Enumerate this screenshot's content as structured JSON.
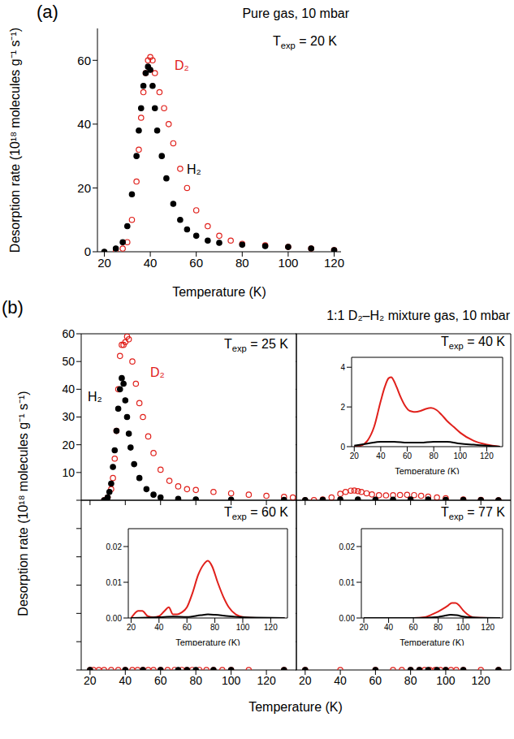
{
  "chart_data": [
    {
      "type": "scatter",
      "panel_label": "(a)",
      "title": "Pure gas, 10 mbar",
      "annotation": "Texp = 20 K",
      "xlabel": "Temperature (K)",
      "ylabel": "Desorption rate (10¹⁸ molecules g⁻¹ s⁻¹)",
      "xlim": [
        17,
        123
      ],
      "xticks": [
        20,
        40,
        60,
        80,
        100,
        120
      ],
      "ylim": [
        0,
        70
      ],
      "yticks": [
        0,
        20,
        40,
        60
      ],
      "grid": false,
      "series": [
        {
          "name": "D₂",
          "color": "#e0201b",
          "marker": "open circle",
          "x": [
            25,
            28,
            30,
            32,
            34,
            35,
            36,
            37,
            38,
            39,
            40,
            41,
            42,
            44,
            46,
            48,
            50,
            53,
            56,
            60,
            65,
            70,
            75,
            80,
            90,
            100,
            110,
            120
          ],
          "values": [
            0,
            1,
            3,
            10,
            22,
            32,
            42,
            50,
            56,
            60,
            61,
            60,
            56,
            50,
            45,
            40,
            34,
            26,
            20,
            13,
            8,
            5,
            3.5,
            2.5,
            2,
            1.5,
            1,
            0.5
          ]
        },
        {
          "name": "H₂",
          "color": "#000000",
          "marker": "circle",
          "x": [
            20,
            25,
            28,
            30,
            32,
            34,
            35,
            36,
            37,
            38,
            39,
            40,
            41,
            42,
            43,
            45,
            47,
            50,
            53,
            56,
            60,
            65,
            70,
            80,
            90,
            100,
            110,
            120
          ],
          "values": [
            0,
            1,
            3,
            8,
            18,
            30,
            38,
            45,
            52,
            56,
            58,
            57,
            52,
            45,
            38,
            30,
            23,
            15,
            10,
            7,
            5,
            3.5,
            2.8,
            2.2,
            1.8,
            1.5,
            1,
            0.5
          ]
        }
      ]
    },
    {
      "type": "scatter",
      "panel_label": "(b)",
      "title": "1:1 D₂–H₂ mixture gas, 10 mbar",
      "xlabel": "Temperature (K)",
      "ylabel": "Desorption rate (10¹⁸ molecules g⁻¹ s⁻¹)",
      "xlim": [
        15,
        137
      ],
      "xticks": [
        20,
        40,
        60,
        80,
        100,
        120
      ],
      "ylim": [
        0,
        60
      ],
      "yticks": [
        0,
        10,
        20,
        30,
        40,
        50,
        60
      ],
      "grid": false,
      "subplots": [
        {
          "annotation": "Texp = 25 K",
          "series": [
            {
              "name": "D₂",
              "color": "#e0201b",
              "marker": "open circle",
              "x": [
                28,
                30,
                32,
                33,
                34,
                35,
                36,
                37,
                38,
                39,
                40,
                41,
                42,
                44,
                46,
                48,
                50,
                53,
                56,
                60,
                65,
                70,
                75,
                80,
                90,
                100,
                110,
                120,
                130,
                135
              ],
              "values": [
                0,
                1,
                4,
                8,
                15,
                25,
                40,
                52,
                56,
                56,
                57,
                59,
                58,
                50,
                42,
                35,
                30,
                23,
                17,
                11,
                7,
                5,
                4,
                3.7,
                3,
                2.5,
                2,
                1.6,
                1.2,
                1
              ]
            },
            {
              "name": "H₂",
              "color": "#000000",
              "marker": "circle",
              "x": [
                28,
                30,
                31,
                32,
                33,
                34,
                35,
                36,
                37,
                38,
                39,
                40,
                41,
                42,
                43,
                45,
                48,
                52,
                56,
                60,
                70,
                80,
                100,
                130
              ],
              "values": [
                0,
                1,
                3,
                6,
                12,
                18,
                25,
                33,
                40,
                44,
                42,
                36,
                30,
                24,
                19,
                13,
                8,
                4,
                2,
                1,
                0.5,
                0.3,
                0.2,
                0.1
              ]
            }
          ]
        },
        {
          "annotation": "Texp = 40 K",
          "series": [
            {
              "name": "D₂",
              "color": "#e0201b",
              "marker": "open circle",
              "x": [
                20,
                25,
                30,
                35,
                40,
                43,
                46,
                48,
                50,
                52,
                55,
                58,
                62,
                66,
                70,
                74,
                78,
                82,
                86,
                90,
                95,
                100,
                110,
                120,
                130
              ],
              "values": [
                0,
                0.05,
                0.3,
                1,
                2.3,
                3,
                3.45,
                3.5,
                3.3,
                3,
                2.5,
                2.1,
                1.8,
                1.75,
                1.8,
                1.9,
                1.95,
                1.85,
                1.6,
                1.3,
                1,
                0.7,
                0.3,
                0.1,
                0
              ]
            },
            {
              "name": "H₂",
              "color": "#000000",
              "marker": "circle",
              "x": [
                20,
                30,
                40,
                50,
                60,
                70,
                80,
                90,
                100,
                110,
                120,
                130
              ],
              "values": [
                0.05,
                0.15,
                0.25,
                0.25,
                0.2,
                0.2,
                0.25,
                0.25,
                0.15,
                0.1,
                0.05,
                0
              ]
            }
          ],
          "inset": {
            "type": "line",
            "xlabel": "Temperature (K)",
            "xlim": [
              18,
              132
            ],
            "xticks": [
              20,
              40,
              60,
              80,
              100,
              120
            ],
            "ylim": [
              0,
              4.5
            ],
            "yticks": [
              0,
              2,
              4
            ]
          }
        },
        {
          "annotation": "Texp = 60 K",
          "series": [
            {
              "name": "D₂",
              "color": "#e0201b",
              "marker": "open circle",
              "x": [
                20,
                22,
                25,
                28,
                32,
                36,
                40,
                44,
                47,
                50,
                53,
                56,
                60,
                64,
                68,
                72,
                75,
                78,
                82,
                86,
                90,
                95,
                100,
                110,
                130
              ],
              "values": [
                0,
                0.001,
                0.002,
                0.002,
                0.0005,
                0.0002,
                0.0005,
                0.002,
                0.003,
                0.001,
                0.001,
                0.0015,
                0.003,
                0.007,
                0.012,
                0.015,
                0.016,
                0.0145,
                0.01,
                0.006,
                0.003,
                0.001,
                0.0003,
                0,
                0
              ]
            },
            {
              "name": "H₂",
              "color": "#000000",
              "marker": "circle",
              "x": [
                20,
                40,
                50,
                60,
                70,
                75,
                80,
                90,
                100,
                130
              ],
              "values": [
                0,
                0.0002,
                0.0004,
                0.0003,
                0.0008,
                0.001,
                0.0009,
                0.0005,
                0.0002,
                0
              ]
            }
          ],
          "inset": {
            "type": "line",
            "xlabel": "Temperature (K)",
            "xlim": [
              18,
              132
            ],
            "xticks": [
              20,
              40,
              60,
              80,
              100,
              120
            ],
            "ylim": [
              0,
              0.025
            ],
            "yticks": [
              {
                "value": 0,
                "label": "0.00"
              },
              {
                "value": 0.01,
                "label": "0.01"
              },
              {
                "value": 0.02,
                "label": "0.02"
              }
            ]
          }
        },
        {
          "annotation": "Texp = 77 K",
          "series": [
            {
              "name": "D₂",
              "color": "#e0201b",
              "marker": "open circle",
              "x": [
                20,
                40,
                60,
                70,
                75,
                80,
                85,
                88,
                91,
                94,
                97,
                100,
                103,
                106,
                110,
                120,
                130
              ],
              "values": [
                0,
                0,
                0,
                0.0003,
                0.001,
                0.0018,
                0.0028,
                0.0035,
                0.0042,
                0.0042,
                0.0035,
                0.0022,
                0.0012,
                0.0005,
                0.0001,
                0,
                0
              ]
            },
            {
              "name": "H₂",
              "color": "#000000",
              "marker": "circle",
              "x": [
                20,
                60,
                80,
                85,
                90,
                95,
                100,
                110,
                130
              ],
              "values": [
                0,
                0,
                0.0003,
                0.0006,
                0.0009,
                0.0008,
                0.0004,
                0.0001,
                0
              ]
            }
          ],
          "inset": {
            "type": "line",
            "xlabel": "Temperature (K)",
            "xlim": [
              18,
              132
            ],
            "xticks": [
              20,
              40,
              60,
              80,
              100,
              120
            ],
            "ylim": [
              0,
              0.025
            ],
            "yticks": [
              {
                "value": 0,
                "label": "0.00"
              },
              {
                "value": 0.01,
                "label": "0.01"
              },
              {
                "value": 0.02,
                "label": "0.02"
              }
            ]
          }
        }
      ]
    }
  ]
}
